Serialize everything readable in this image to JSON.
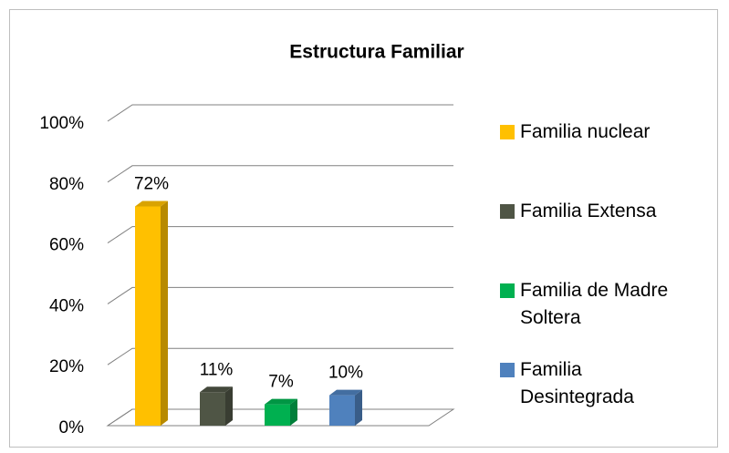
{
  "chart_data": {
    "type": "bar3d",
    "title": "Estructura Familiar",
    "series": [
      {
        "name": "Familia nuclear",
        "color": "#FFC000",
        "values": [
          72
        ],
        "value_labels": [
          "72%"
        ]
      },
      {
        "name": "Familia Extensa",
        "color": "#4F5545",
        "values": [
          11
        ],
        "value_labels": [
          "11%"
        ]
      },
      {
        "name": "Familia de Madre Soltera",
        "color": "#00B050",
        "values": [
          7
        ],
        "value_labels": [
          "7%"
        ]
      },
      {
        "name": "Familia Desintegrada",
        "color": "#4F81BD",
        "values": [
          10
        ],
        "value_labels": [
          "10%"
        ]
      }
    ],
    "ylim": [
      0,
      100
    ],
    "yticks": [
      {
        "value": 0,
        "label": "0%"
      },
      {
        "value": 20,
        "label": "20%"
      },
      {
        "value": 40,
        "label": "40%"
      },
      {
        "value": 60,
        "label": "60%"
      },
      {
        "value": 80,
        "label": "80%"
      },
      {
        "value": 100,
        "label": "100%"
      }
    ],
    "grid": true,
    "legend": "right"
  }
}
